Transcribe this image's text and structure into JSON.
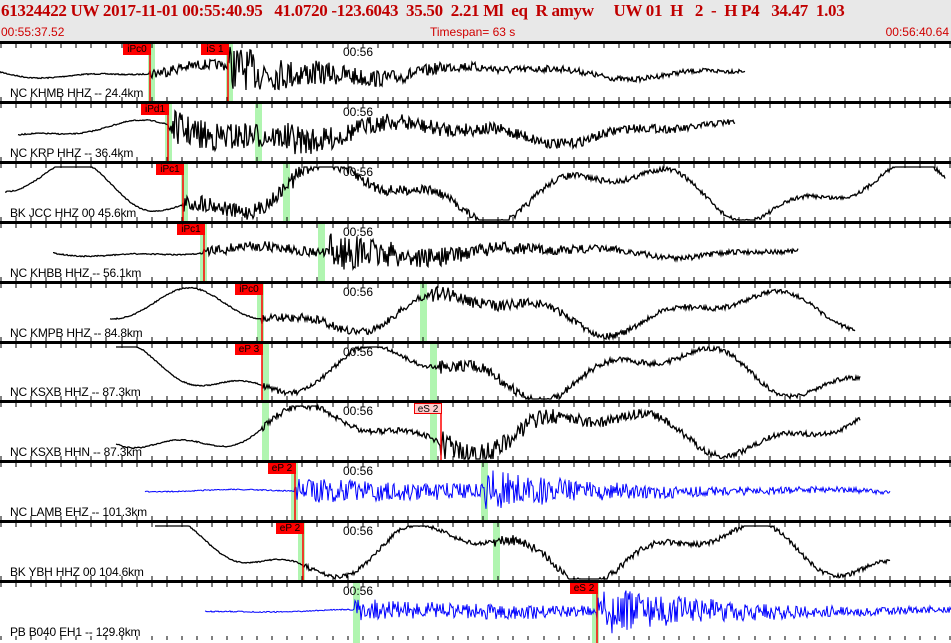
{
  "header": {
    "title": "61324422 UW 2017-11-01 00:55:40.95   41.0720 -123.6043  35.50  2.21 Ml  eq  R amyw     UW 01  H   2  -  H P4   34.47  1.03",
    "start_time": "00:55:37.52",
    "timespan": "Timespan=  63 s",
    "end_time": "00:56:40.64"
  },
  "colors": {
    "header_text": "#c00000",
    "pick": "#ff0000",
    "predicted_band": "#b0f5b0",
    "trace_hh": "#000000",
    "trace_eh": "#0000ff"
  },
  "panels": [
    {
      "station": "NC KHMB HHZ -- 24.4km",
      "time_label": "00:56",
      "picks": [
        "iPc0",
        "iS 1"
      ]
    },
    {
      "station": "NC KRP HHZ -- 36.4km",
      "time_label": "00:56",
      "picks": [
        "iPd1"
      ]
    },
    {
      "station": "BK JCC HHZ 00 45.6km",
      "time_label": "00:56",
      "picks": [
        "iPc1"
      ]
    },
    {
      "station": "NC KHBB HHZ -- 56.1km",
      "time_label": "00:56",
      "picks": [
        "iPc1"
      ]
    },
    {
      "station": "NC KMPB HHZ -- 84.8km",
      "time_label": "00:56",
      "picks": [
        "iPc0"
      ]
    },
    {
      "station": "NC KSXB HHZ -- 87.3km",
      "time_label": "00:56",
      "picks": [
        "eP 3"
      ]
    },
    {
      "station": "NC KSXB HHN -- 87.3km",
      "time_label": "00:56",
      "picks": [
        "eS 2"
      ]
    },
    {
      "station": "NC LAMB EHZ -- 101.3km",
      "time_label": "00:56",
      "picks": [
        "eP 2"
      ]
    },
    {
      "station": "BK YBH HHZ 00 104.6km",
      "time_label": "00:56",
      "picks": [
        "eP 2"
      ]
    },
    {
      "station": "PB B040 EH1 -- 129.8km",
      "time_label": "00:56",
      "picks": [
        "eS 2"
      ]
    }
  ]
}
